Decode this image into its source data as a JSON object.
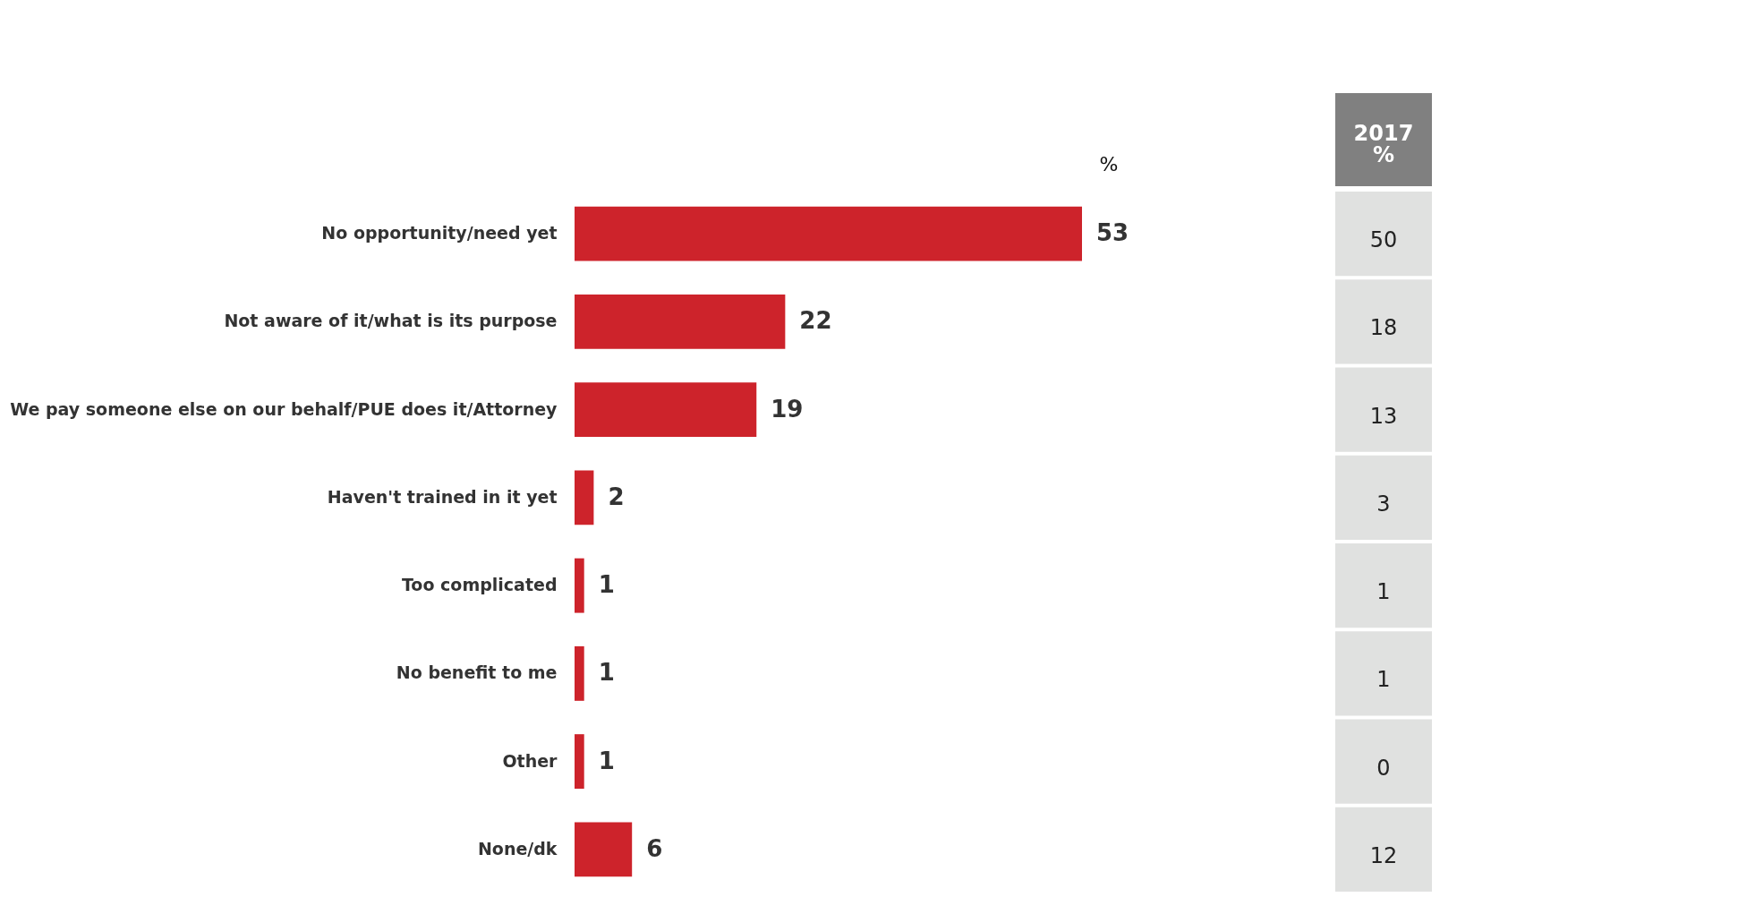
{
  "chart_data": {
    "type": "bar",
    "orientation": "horizontal",
    "data_labels": true,
    "grid": false,
    "tick_labels": "y",
    "color": "#cd232b",
    "categories": [
      "No opportunity/need yet",
      "Not aware of it/what is its purpose",
      "We pay someone else on our behalf/PUE does it/Attorney",
      "Haven't trained in it yet",
      "Too complicated",
      "No benefit to me",
      "Other",
      "None/dk"
    ],
    "values": [
      53,
      22,
      19,
      2,
      1,
      1,
      1,
      6
    ],
    "annotations": [
      "%",
      "2017 %",
      "50",
      "18",
      "13",
      "3",
      "1",
      "1",
      "0",
      "12"
    ]
  }
}
